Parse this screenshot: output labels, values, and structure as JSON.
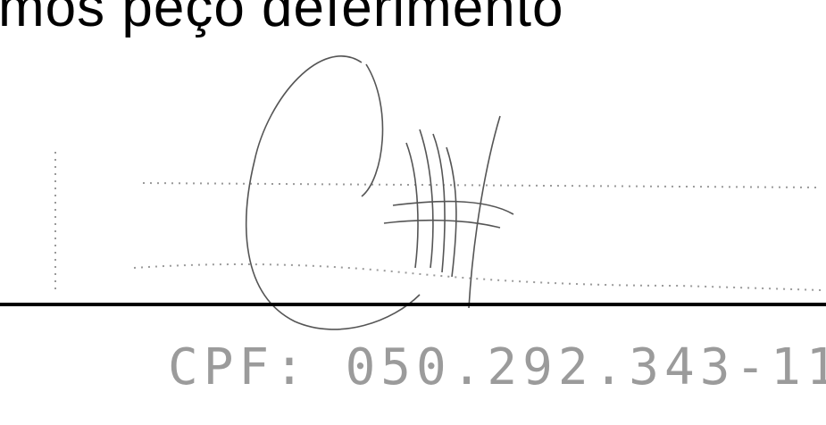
{
  "document": {
    "closing_text": "mos peço deferimento",
    "cpf_text": "CPF: 050.292.343-11"
  },
  "colors": {
    "ink": "#000000",
    "faded_print": "#7a7a7a"
  }
}
